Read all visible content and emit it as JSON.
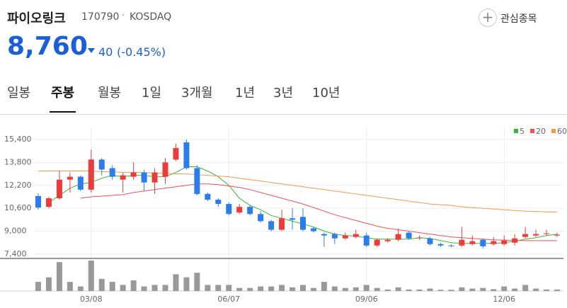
{
  "header": {
    "name": "파이오링크",
    "code": "170790",
    "market": "KOSDAQ",
    "watch_button": "관심종목",
    "price": "8,760",
    "change": "40",
    "change_rate": "(-0.45%)"
  },
  "tabs": {
    "items": [
      "일봉",
      "주봉",
      "월봉",
      "1일",
      "3개월",
      "1년",
      "3년",
      "10년"
    ],
    "active": 1
  },
  "chart_data": {
    "type": "candlestick",
    "categories": [
      null,
      null,
      null,
      null,
      null,
      "03/08",
      null,
      null,
      null,
      null,
      null,
      null,
      null,
      null,
      null,
      null,
      null,
      null,
      "06/07",
      null,
      null,
      null,
      null,
      null,
      null,
      null,
      null,
      null,
      null,
      null,
      null,
      "09/06",
      null,
      null,
      null,
      null,
      null,
      null,
      null,
      null,
      null,
      null,
      null,
      null,
      "12/06",
      null,
      null,
      null,
      null,
      null
    ],
    "open": [
      11450,
      10700,
      11300,
      12600,
      12800,
      11900,
      14000,
      13400,
      12600,
      12800,
      13100,
      12400,
      12800,
      14000,
      15200,
      13400,
      11600,
      11200,
      10900,
      10300,
      10700,
      10200,
      9700,
      9100,
      9900,
      10000,
      9200,
      8800,
      8800,
      8500,
      8600,
      8700,
      8000,
      8300,
      8400,
      8900,
      8500,
      8500,
      8100,
      8000,
      8000,
      8100,
      8400,
      8100,
      8100,
      8200,
      8600,
      8700,
      8800,
      8700
    ],
    "high": [
      11650,
      11400,
      13200,
      13100,
      12900,
      14700,
      14100,
      13600,
      13100,
      13800,
      13300,
      13400,
      14100,
      15100,
      15400,
      13600,
      11700,
      11300,
      11000,
      10900,
      10800,
      10400,
      9800,
      10500,
      10600,
      10600,
      9300,
      8900,
      8900,
      8900,
      9100,
      8900,
      8500,
      8500,
      9200,
      9000,
      8700,
      8600,
      8200,
      8100,
      9300,
      8700,
      8500,
      8600,
      8700,
      8800,
      9300,
      9100,
      9100,
      8900
    ],
    "low": [
      10500,
      10600,
      11200,
      11700,
      11800,
      11700,
      12900,
      12600,
      11700,
      12600,
      11800,
      11600,
      12300,
      13900,
      13300,
      11500,
      11100,
      10700,
      10100,
      10200,
      10100,
      9600,
      9000,
      9000,
      9100,
      9000,
      8900,
      7900,
      8100,
      8400,
      8500,
      7900,
      7900,
      8200,
      8300,
      8400,
      8400,
      8000,
      7900,
      7900,
      7900,
      8000,
      7800,
      8000,
      8000,
      8000,
      8500,
      8600,
      8700,
      8600
    ],
    "close": [
      10650,
      11300,
      12600,
      12800,
      11900,
      14000,
      13300,
      12800,
      12900,
      13100,
      12400,
      13100,
      13800,
      14800,
      13400,
      11600,
      11200,
      10900,
      10200,
      10700,
      10200,
      9700,
      9100,
      9900,
      9800,
      9100,
      9000,
      8700,
      8500,
      8700,
      8800,
      8000,
      8400,
      8400,
      8800,
      8500,
      8560,
      8100,
      8000,
      7950,
      8400,
      8300,
      7950,
      8300,
      8350,
      8500,
      8800,
      8800,
      8850,
      8760
    ],
    "up_color": "#ec3b3b",
    "down_color": "#2b7de9",
    "series": [
      {
        "name": "5",
        "color": "#39b53a",
        "values": [
          null,
          11000,
          11500,
          12000,
          12300,
          12400,
          12700,
          12900,
          12800,
          12900,
          12900,
          12800,
          12800,
          13100,
          13500,
          13500,
          13200,
          12800,
          12200,
          11300,
          10800,
          10500,
          10100,
          9900,
          9700,
          9500,
          9300,
          9000,
          8800,
          8700,
          8650,
          8550,
          8450,
          8450,
          8450,
          8450,
          8550,
          8500,
          8350,
          8200,
          8150,
          8150,
          8150,
          8150,
          8200,
          8300,
          8450,
          8550,
          8700,
          8780
        ]
      },
      {
        "name": "20",
        "color": "#f0505a",
        "values": [
          null,
          null,
          null,
          null,
          11300,
          11400,
          11450,
          11500,
          11550,
          11700,
          11800,
          11900,
          12000,
          12100,
          12200,
          12300,
          12300,
          12250,
          12150,
          12050,
          11900,
          11700,
          11500,
          11300,
          11100,
          10900,
          10650,
          10400,
          10150,
          9950,
          9750,
          9550,
          9350,
          9200,
          9100,
          9000,
          8900,
          8800,
          8700,
          8600,
          8550,
          8500,
          8450,
          8400,
          8380,
          8360,
          8340,
          8340,
          8340,
          8340
        ]
      },
      {
        "name": "60",
        "color": "#f39a4c",
        "values": [
          13200,
          13200,
          13200,
          13200,
          13200,
          13200,
          13150,
          13150,
          13100,
          13100,
          13100,
          13050,
          13050,
          13000,
          13000,
          12950,
          12900,
          12850,
          12800,
          12700,
          12600,
          12500,
          12400,
          12300,
          12200,
          12100,
          12000,
          11900,
          11800,
          11700,
          11600,
          11500,
          11400,
          11300,
          11200,
          11100,
          11000,
          10900,
          10850,
          10800,
          10700,
          10650,
          10600,
          10550,
          10500,
          10450,
          10400,
          10380,
          10350,
          10330
        ]
      }
    ],
    "ylim": [
      7100,
      16240
    ],
    "yticks": [
      {
        "value": 7400,
        "label": "7,400"
      },
      {
        "value": 9000,
        "label": "9,000"
      },
      {
        "value": 10600,
        "label": "10,600"
      },
      {
        "value": 12200,
        "label": "12,200"
      },
      {
        "value": 13800,
        "label": "13,800"
      },
      {
        "value": 15400,
        "label": "15,400"
      }
    ],
    "grid": true,
    "legend": "top-right",
    "volume": [
      30,
      45,
      95,
      30,
      15,
      100,
      40,
      30,
      20,
      35,
      15,
      20,
      20,
      55,
      45,
      60,
      20,
      20,
      20,
      10,
      10,
      15,
      15,
      20,
      12,
      20,
      10,
      30,
      15,
      10,
      12,
      20,
      10,
      5,
      12,
      5,
      5,
      8,
      4,
      4,
      12,
      8,
      10,
      6,
      15,
      8,
      20,
      8,
      5,
      5
    ],
    "volume_ylim": [
      0,
      100
    ],
    "volume_color": "#999999"
  }
}
